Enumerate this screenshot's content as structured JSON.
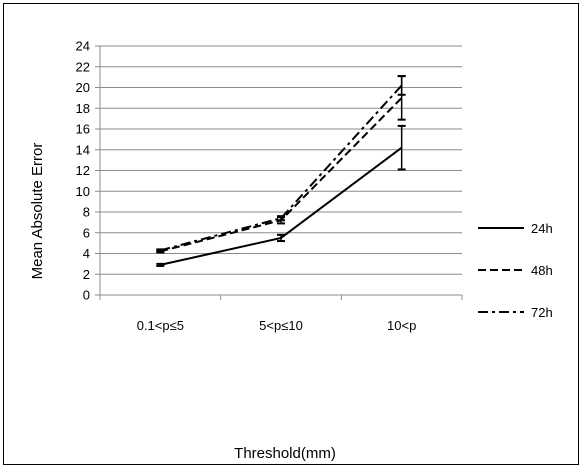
{
  "chart_data": {
    "type": "line",
    "xlabel": "Threshold(mm)",
    "ylabel": "Mean Absolute Error",
    "categories": [
      "0.1<p≤5",
      "5<p≤10",
      "10<p"
    ],
    "ylim": [
      0,
      24
    ],
    "yticks": [
      0,
      2,
      4,
      6,
      8,
      10,
      12,
      14,
      16,
      18,
      20,
      22,
      24
    ],
    "grid": "horizontal",
    "legend_position": "right",
    "series": [
      {
        "name": "24h",
        "dash": "solid",
        "values": [
          2.9,
          5.5,
          14.2
        ],
        "error": [
          0.1,
          0.3,
          2.1
        ]
      },
      {
        "name": "48h",
        "dash": "dashed",
        "values": [
          4.2,
          7.2,
          19.0
        ],
        "error": [
          0.1,
          0.3,
          2.1
        ]
      },
      {
        "name": "72h",
        "dash": "dashdot",
        "values": [
          4.3,
          7.4,
          20.2
        ],
        "error": [
          0.1,
          0.2,
          0.9
        ]
      }
    ]
  }
}
